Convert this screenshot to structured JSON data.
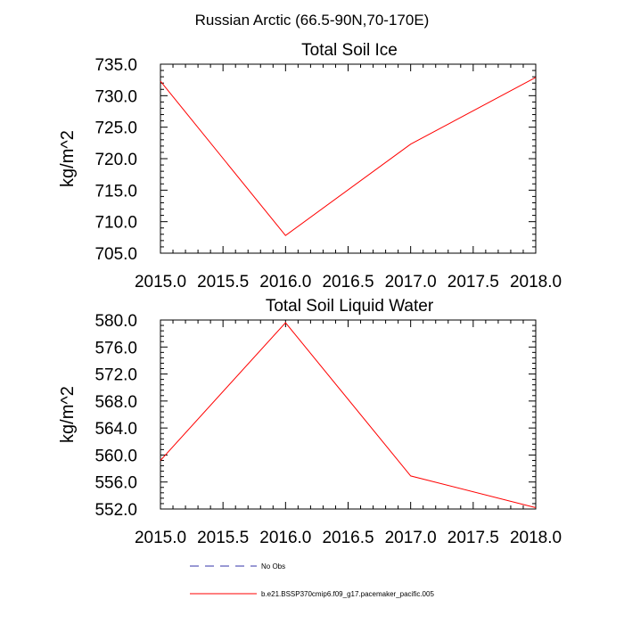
{
  "figure_title": "Russian Arctic (66.5-90N,70-170E)",
  "colors": {
    "model": "#ff0000",
    "obs": "#3333aa",
    "axis": "#000000"
  },
  "legend": {
    "obs_label": "No Obs",
    "model_label": "b.e21.BSSP370cmip6.f09_g17.pacemaker_pacific.005"
  },
  "chart_data": [
    {
      "type": "line",
      "title": "Total Soil Ice",
      "xlabel": "",
      "ylabel": "kg/m^2",
      "xlim": [
        2015.0,
        2018.0
      ],
      "ylim": [
        705.0,
        735.0
      ],
      "x_ticks": [
        "2015.0",
        "2015.5",
        "2016.0",
        "2016.5",
        "2017.0",
        "2017.5",
        "2018.0"
      ],
      "y_ticks": [
        "705.0",
        "710.0",
        "715.0",
        "720.0",
        "725.0",
        "730.0",
        "735.0"
      ],
      "grid": false,
      "series": [
        {
          "name": "b.e21.BSSP370cmip6.f09_g17.pacemaker_pacific.005",
          "x": [
            2015.0,
            2016.0,
            2017.0,
            2018.0
          ],
          "y": [
            732.3,
            707.8,
            722.3,
            732.9
          ]
        }
      ]
    },
    {
      "type": "line",
      "title": "Total Soil Liquid Water",
      "xlabel": "",
      "ylabel": "kg/m^2",
      "xlim": [
        2015.0,
        2018.0
      ],
      "ylim": [
        552.0,
        580.0
      ],
      "x_ticks": [
        "2015.0",
        "2015.5",
        "2016.0",
        "2016.5",
        "2017.0",
        "2017.5",
        "2018.0"
      ],
      "y_ticks": [
        "552.0",
        "556.0",
        "560.0",
        "564.0",
        "568.0",
        "572.0",
        "576.0",
        "580.0"
      ],
      "grid": false,
      "series": [
        {
          "name": "b.e21.BSSP370cmip6.f09_g17.pacemaker_pacific.005",
          "x": [
            2015.0,
            2016.0,
            2017.0,
            2018.0
          ],
          "y": [
            559.2,
            579.6,
            556.9,
            552.2
          ]
        }
      ]
    }
  ]
}
